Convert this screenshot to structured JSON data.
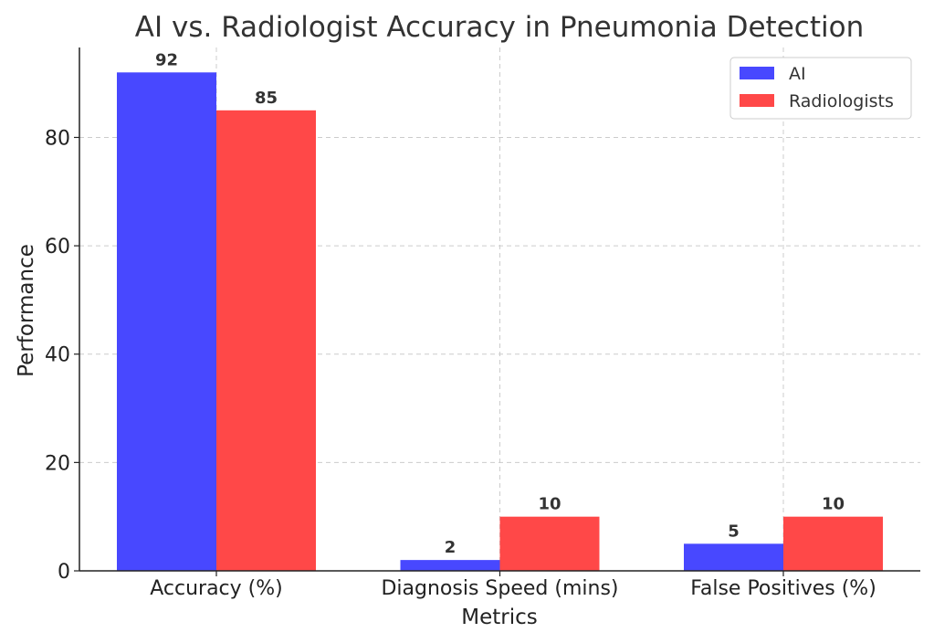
{
  "chart_data": {
    "type": "bar",
    "title": "AI vs. Radiologist Accuracy in Pneumonia Detection",
    "xlabel": "Metrics",
    "ylabel": "Performance",
    "categories": [
      "Accuracy (%)",
      "Diagnosis Speed (mins)",
      "False Positives (%)"
    ],
    "series": [
      {
        "name": "AI",
        "values": [
          92,
          2,
          5
        ],
        "color": "#4848ff"
      },
      {
        "name": "Radiologists",
        "values": [
          85,
          10,
          10
        ],
        "color": "#ff4848"
      }
    ],
    "ylim": [
      0,
      96.6
    ],
    "yticks": [
      0,
      20,
      40,
      60,
      80
    ],
    "grid": true,
    "legend_position": "top-right"
  }
}
